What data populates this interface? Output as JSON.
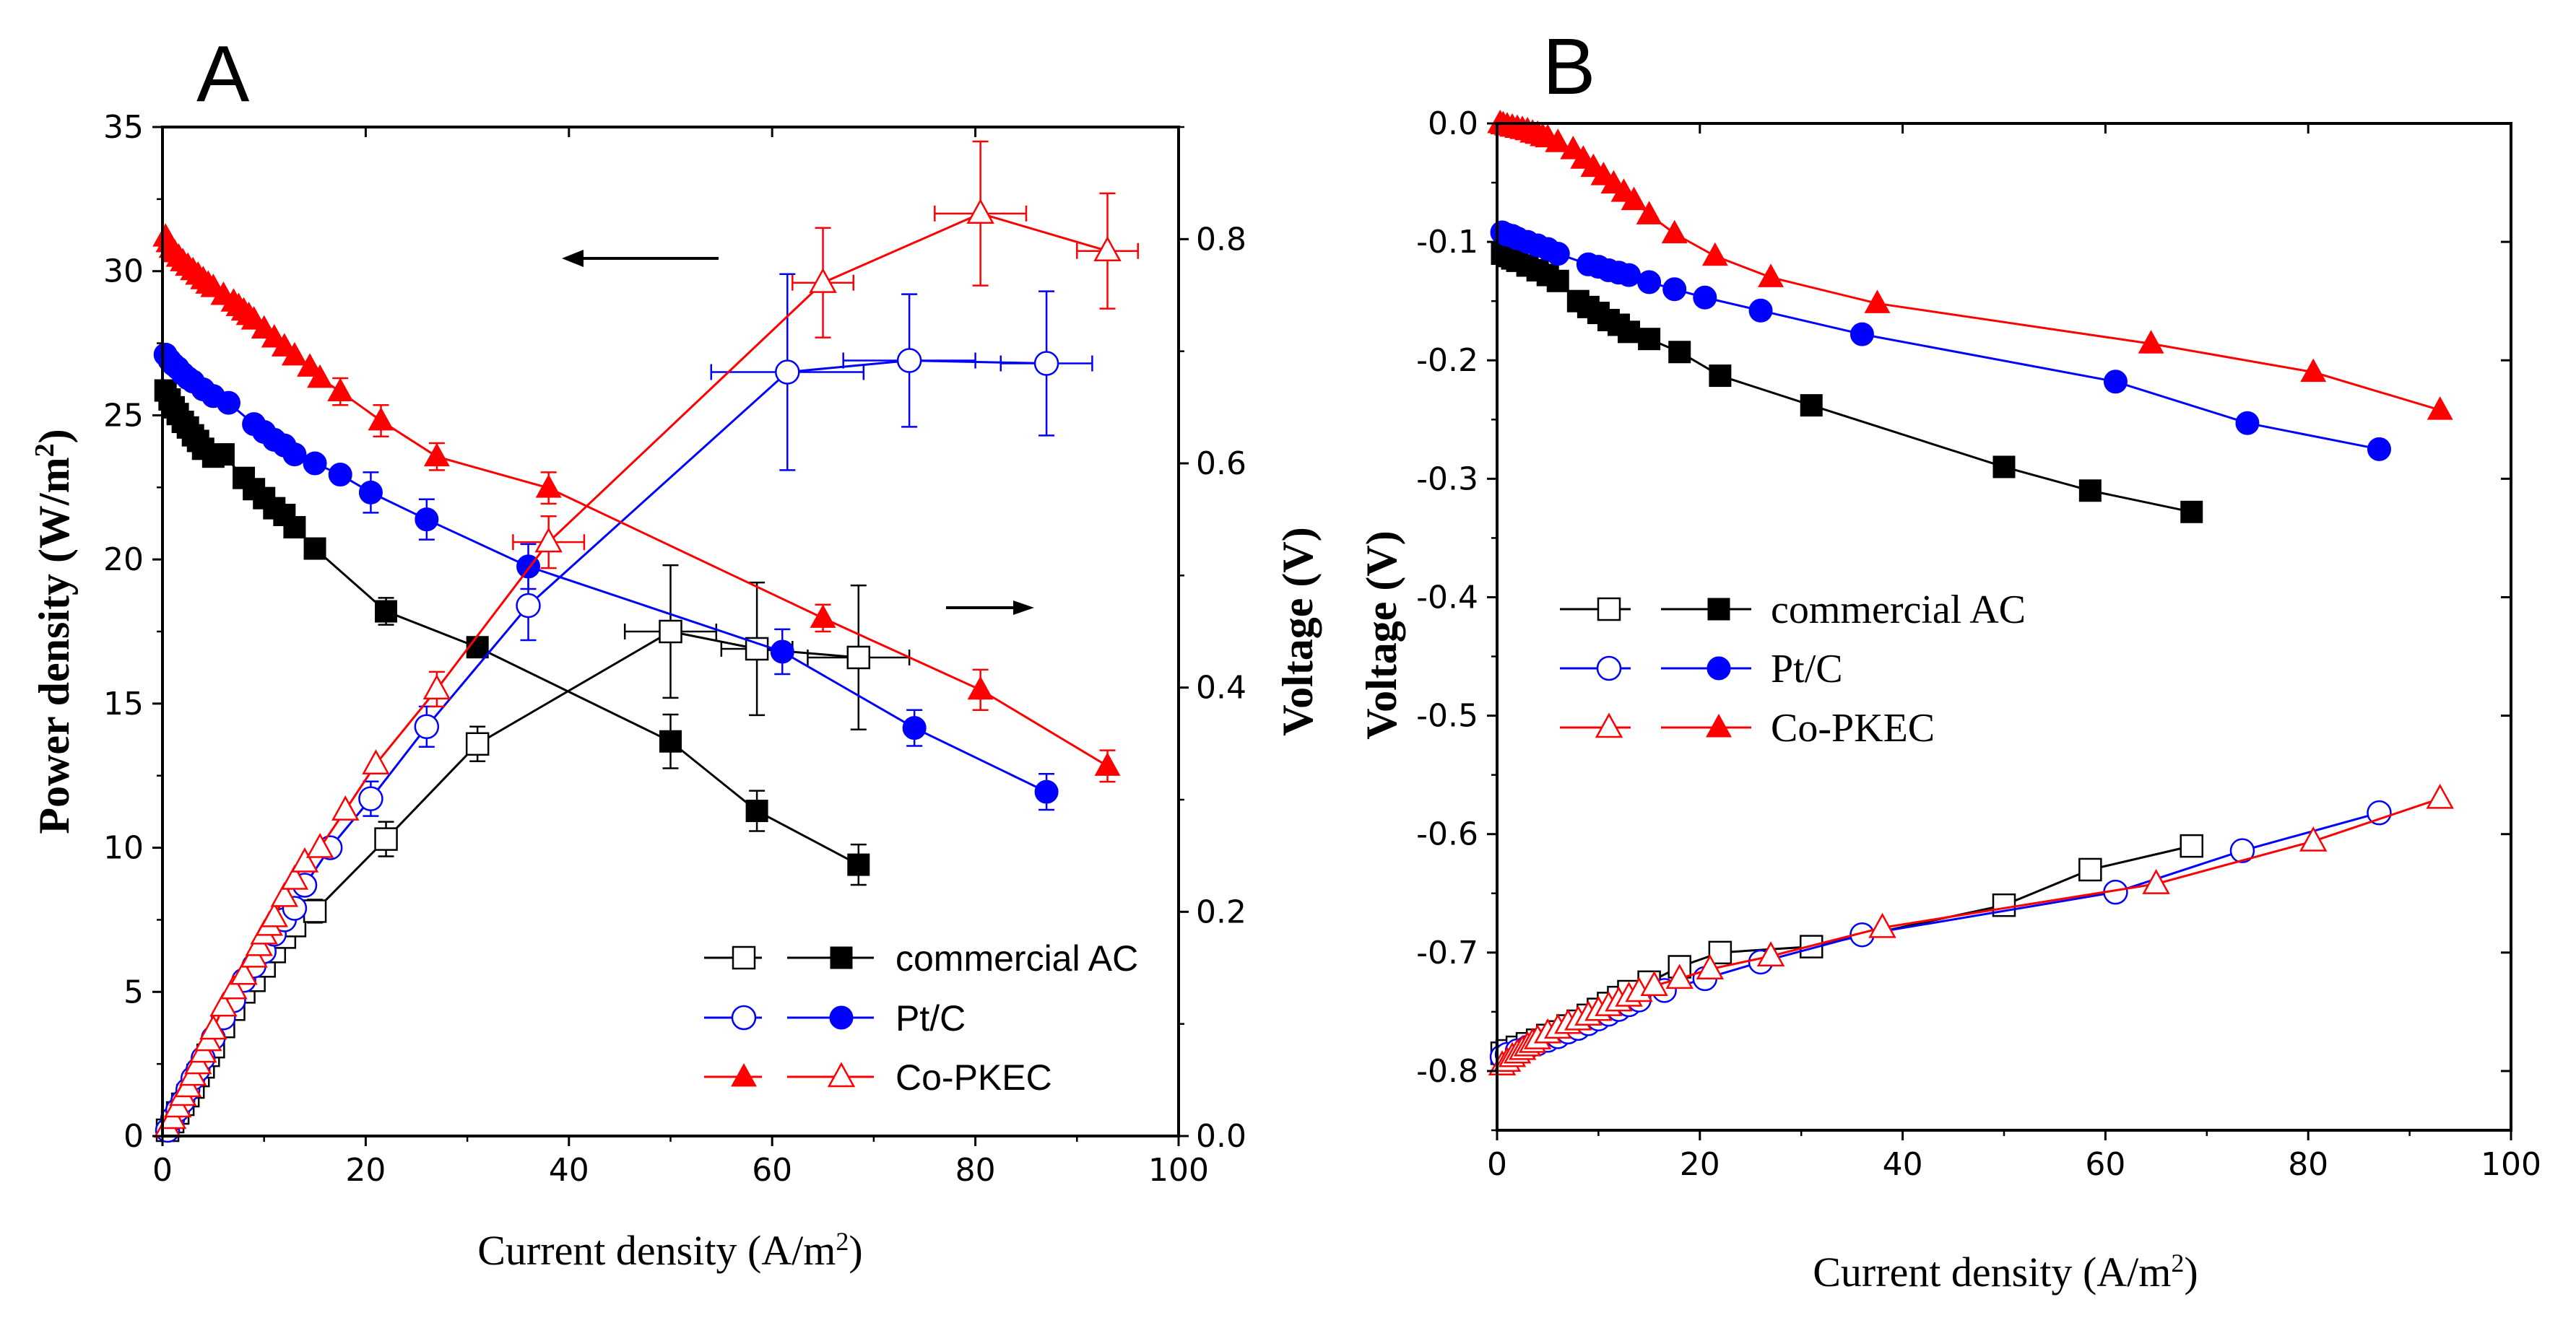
{
  "chart_data": [
    {
      "panel": "A",
      "type": "line",
      "title": "A",
      "xlabel": "Current density (A/m²)",
      "xlabel_parts": [
        "Current density (A/m",
        "2",
        ")"
      ],
      "ylabel_left": "Power density (W/m²)",
      "ylabel_left_parts": [
        "Power density (W/m",
        "2",
        ")"
      ],
      "ylabel_right": "Voltage (V)",
      "xlim": [
        0,
        100
      ],
      "ylim_left": [
        0,
        35
      ],
      "ylim_right": [
        0,
        0.9
      ],
      "xticks": [
        0,
        20,
        40,
        60,
        80,
        100
      ],
      "xtick_labels": [
        "0",
        "20",
        "40",
        "60",
        "80",
        "100"
      ],
      "yticks_left": [
        0,
        5,
        10,
        15,
        20,
        25,
        30,
        35
      ],
      "ytick_labels_left": [
        "0",
        "5",
        "10",
        "15",
        "20",
        "25",
        "30",
        "35"
      ],
      "yticks_right": [
        0,
        0.2,
        0.4,
        0.6,
        0.8
      ],
      "ytick_labels_right": [
        "0.0",
        "0.2",
        "0.4",
        "0.6",
        "0.8"
      ],
      "legend": [
        "commercial AC",
        "Pt/C",
        "Co-PKEC"
      ],
      "legend_position": "bottom-right",
      "annotations": [
        "arrow pointing left toward power density axis",
        "arrow pointing right toward voltage axis"
      ],
      "series": [
        {
          "name": "commercial AC",
          "kind": "power",
          "axis": "left",
          "marker": "open-square",
          "color": "#000000",
          "x": [
            0.5,
            1,
            1.5,
            2,
            2.5,
            3,
            3.5,
            4,
            4.5,
            5,
            6,
            7,
            8,
            9,
            10,
            11,
            12,
            13,
            15,
            22,
            31,
            50,
            58.5,
            68.5
          ],
          "y": [
            0.2,
            0.5,
            0.8,
            1.1,
            1.4,
            1.7,
            2.1,
            2.4,
            2.8,
            3.1,
            3.8,
            4.4,
            5.0,
            5.4,
            5.9,
            6.4,
            6.9,
            7.3,
            7.8,
            10.3,
            13.6,
            17.5,
            16.9,
            16.6
          ],
          "y_err": [
            0,
            0,
            0,
            0,
            0,
            0,
            0,
            0,
            0,
            0,
            0,
            0,
            0,
            0,
            0,
            0,
            0,
            0,
            0.4,
            0.6,
            0.6,
            2.3,
            2.3,
            2.5
          ],
          "x_err": [
            0,
            0,
            0,
            0,
            0,
            0,
            0,
            0,
            0,
            0,
            0,
            0,
            0,
            0,
            0,
            0,
            0,
            0,
            0,
            0,
            0,
            4.5,
            3.5,
            5
          ]
        },
        {
          "name": "commercial AC",
          "kind": "voltage",
          "axis": "right",
          "marker": "filled-square",
          "color": "#000000",
          "x": [
            0.3,
            0.7,
            1.1,
            1.5,
            2,
            2.5,
            3,
            3.5,
            4,
            5,
            6,
            8,
            9,
            10,
            11,
            12,
            13,
            15,
            22,
            31,
            50,
            58.5,
            68.5
          ],
          "y": [
            0.665,
            0.657,
            0.65,
            0.644,
            0.637,
            0.632,
            0.625,
            0.62,
            0.613,
            0.606,
            0.608,
            0.587,
            0.577,
            0.569,
            0.56,
            0.554,
            0.543,
            0.524,
            0.468,
            0.436,
            0.352,
            0.29,
            0.242
          ],
          "y_err": [
            0,
            0,
            0,
            0,
            0,
            0,
            0,
            0,
            0,
            0,
            0,
            0,
            0,
            0,
            0,
            0,
            0,
            0,
            0.012,
            0,
            0.024,
            0.018,
            0.018
          ]
        },
        {
          "name": "Pt/C",
          "kind": "power",
          "axis": "left",
          "marker": "open-circle",
          "color": "#0000ff",
          "x": [
            0.5,
            1,
            1.5,
            2,
            2.5,
            3,
            3.5,
            4,
            5,
            6,
            7,
            8,
            9,
            10,
            11,
            12,
            13,
            14,
            16.5,
            20.5,
            26,
            36,
            61.5,
            73.5,
            87
          ],
          "y": [
            0.2,
            0.6,
            0.9,
            1.2,
            1.6,
            2.0,
            2.3,
            2.7,
            3.4,
            4.1,
            4.7,
            5.4,
            5.9,
            6.4,
            7.0,
            7.5,
            7.9,
            8.7,
            10.0,
            11.7,
            14.2,
            18.4,
            26.5,
            26.9,
            26.8
          ],
          "y_err": [
            0,
            0,
            0,
            0,
            0,
            0,
            0,
            0,
            0,
            0,
            0,
            0,
            0,
            0,
            0,
            0,
            0,
            0,
            0,
            0.6,
            0.7,
            1.2,
            3.4,
            2.3,
            2.5
          ],
          "x_err": [
            0,
            0,
            0,
            0,
            0,
            0,
            0,
            0,
            0,
            0,
            0,
            0,
            0,
            0,
            0,
            0,
            0,
            0,
            0,
            0,
            0,
            0,
            7.5,
            6.5,
            4.5
          ]
        },
        {
          "name": "Pt/C",
          "kind": "voltage",
          "axis": "right",
          "marker": "filled-circle",
          "color": "#0000ff",
          "x": [
            0.3,
            0.7,
            1.1,
            1.5,
            2,
            2.5,
            3,
            4,
            5,
            6.5,
            9,
            10,
            11,
            12,
            13,
            15,
            17.5,
            20.5,
            26,
            36,
            61,
            74,
            87
          ],
          "y": [
            0.697,
            0.692,
            0.688,
            0.685,
            0.68,
            0.676,
            0.673,
            0.666,
            0.66,
            0.654,
            0.635,
            0.628,
            0.621,
            0.616,
            0.608,
            0.6,
            0.59,
            0.574,
            0.55,
            0.508,
            0.432,
            0.364,
            0.307
          ],
          "y_err": [
            0,
            0,
            0,
            0,
            0,
            0,
            0,
            0,
            0,
            0,
            0,
            0,
            0,
            0,
            0,
            0,
            0,
            0.018,
            0.018,
            0.02,
            0.02,
            0.016,
            0.016
          ]
        },
        {
          "name": "Co-PKEC",
          "kind": "power",
          "axis": "left",
          "marker": "open-triangle",
          "color": "#ff0000",
          "x": [
            0.5,
            1,
            1.5,
            2,
            2.5,
            3,
            3.5,
            4,
            4.5,
            5,
            6,
            7,
            8,
            9,
            9.5,
            10,
            10.5,
            11,
            12,
            13,
            14,
            15.5,
            18,
            21,
            27,
            38,
            65,
            80.5,
            93
          ],
          "y": [
            0.3,
            0.6,
            1.0,
            1.4,
            1.7,
            2.1,
            2.5,
            2.9,
            3.3,
            3.7,
            4.5,
            5.1,
            5.6,
            6.2,
            6.6,
            7.0,
            7.3,
            7.6,
            8.3,
            8.9,
            9.5,
            10.0,
            11.3,
            12.9,
            15.5,
            20.6,
            29.6,
            32.0,
            30.7
          ],
          "y_err": [
            0,
            0,
            0,
            0,
            0,
            0,
            0,
            0,
            0,
            0,
            0,
            0,
            0,
            0,
            0,
            0,
            0,
            0,
            0,
            0,
            0,
            0,
            0,
            0,
            0.6,
            0.9,
            1.9,
            2.5,
            2.0
          ],
          "x_err": [
            0,
            0,
            0,
            0,
            0,
            0,
            0,
            0,
            0,
            0,
            0,
            0,
            0,
            0,
            0,
            0,
            0,
            0,
            0,
            0,
            0,
            0,
            0,
            0,
            0,
            3.5,
            3,
            4.5,
            3
          ]
        },
        {
          "name": "Co-PKEC",
          "kind": "voltage",
          "axis": "right",
          "marker": "filled-triangle",
          "color": "#ff0000",
          "x": [
            0.3,
            0.6,
            0.9,
            1.2,
            1.6,
            2,
            2.5,
            3,
            3.5,
            4,
            4.5,
            5,
            6,
            7,
            7.5,
            8,
            8.5,
            9,
            10,
            11,
            12,
            13,
            14.5,
            15.5,
            17.5,
            21.5,
            27,
            38,
            65,
            80.5,
            93
          ],
          "y": [
            0.802,
            0.797,
            0.792,
            0.788,
            0.784,
            0.78,
            0.776,
            0.772,
            0.768,
            0.764,
            0.76,
            0.757,
            0.75,
            0.744,
            0.74,
            0.736,
            0.732,
            0.728,
            0.72,
            0.712,
            0.704,
            0.696,
            0.686,
            0.676,
            0.664,
            0.638,
            0.606,
            0.578,
            0.462,
            0.398,
            0.33
          ],
          "y_err": [
            0,
            0,
            0,
            0,
            0,
            0,
            0,
            0,
            0,
            0,
            0,
            0,
            0,
            0,
            0,
            0,
            0,
            0,
            0,
            0,
            0,
            0,
            0,
            0,
            0.012,
            0.014,
            0.012,
            0.014,
            0.012,
            0.018,
            0.014
          ]
        }
      ]
    },
    {
      "panel": "B",
      "type": "line",
      "title": "B",
      "xlabel": "Current density (A/m²)",
      "xlabel_parts": [
        "Current density (A/m",
        "2",
        ")"
      ],
      "ylabel": "Voltage (V)",
      "xlim": [
        0,
        100
      ],
      "ylim": [
        -0.85,
        0
      ],
      "xticks": [
        0,
        20,
        40,
        60,
        80,
        100
      ],
      "xtick_labels": [
        "0",
        "20",
        "40",
        "60",
        "80",
        "100"
      ],
      "yticks": [
        0,
        -0.1,
        -0.2,
        -0.3,
        -0.4,
        -0.5,
        -0.6,
        -0.7,
        -0.8
      ],
      "ytick_labels": [
        "0.0",
        "-0.1",
        "-0.2",
        "-0.3",
        "-0.4",
        "-0.5",
        "-0.6",
        "-0.7",
        "-0.8"
      ],
      "legend": [
        "commercial AC",
        "Pt/C",
        "Co-PKEC"
      ],
      "legend_position": "center-left",
      "series": [
        {
          "name": "commercial AC",
          "kind": "anode",
          "marker": "filled-square",
          "color": "#000000",
          "x": [
            0.5,
            1,
            1.5,
            2,
            3,
            4,
            5,
            6,
            8,
            9,
            10,
            11,
            12,
            13,
            15,
            18,
            22,
            31,
            50,
            58.5,
            68.5
          ],
          "y": [
            -0.11,
            -0.112,
            -0.114,
            -0.116,
            -0.12,
            -0.124,
            -0.128,
            -0.133,
            -0.15,
            -0.155,
            -0.16,
            -0.166,
            -0.17,
            -0.176,
            -0.182,
            -0.193,
            -0.213,
            -0.238,
            -0.29,
            -0.31,
            -0.328
          ]
        },
        {
          "name": "commercial AC",
          "kind": "cathode",
          "marker": "open-square",
          "color": "#000000",
          "x": [
            0.5,
            1,
            2,
            3,
            4,
            5,
            6,
            7,
            8,
            9,
            10,
            11,
            12,
            13,
            15,
            18,
            22,
            31,
            50,
            58.5,
            68.5
          ],
          "y": [
            -0.785,
            -0.783,
            -0.78,
            -0.777,
            -0.774,
            -0.77,
            -0.767,
            -0.762,
            -0.758,
            -0.753,
            -0.748,
            -0.743,
            -0.738,
            -0.733,
            -0.725,
            -0.712,
            -0.7,
            -0.695,
            -0.66,
            -0.63,
            -0.61
          ]
        },
        {
          "name": "Pt/C",
          "kind": "anode",
          "marker": "filled-circle",
          "color": "#0000ff",
          "x": [
            0.5,
            1,
            1.5,
            2,
            3,
            4,
            5,
            6,
            9,
            10,
            11,
            12,
            13,
            15,
            17.5,
            20.5,
            26,
            36,
            61,
            74,
            87
          ],
          "y": [
            -0.092,
            -0.094,
            -0.095,
            -0.097,
            -0.1,
            -0.103,
            -0.106,
            -0.11,
            -0.119,
            -0.121,
            -0.124,
            -0.126,
            -0.128,
            -0.134,
            -0.14,
            -0.147,
            -0.158,
            -0.178,
            -0.218,
            -0.253,
            -0.275
          ]
        },
        {
          "name": "Pt/C",
          "kind": "cathode",
          "marker": "open-circle",
          "color": "#0000ff",
          "x": [
            0.5,
            1,
            2,
            3,
            4,
            5,
            6,
            7,
            8,
            9,
            10,
            11,
            12,
            13,
            14,
            16.5,
            20.5,
            26,
            36,
            61,
            73.5,
            87
          ],
          "y": [
            -0.788,
            -0.786,
            -0.783,
            -0.78,
            -0.777,
            -0.774,
            -0.771,
            -0.767,
            -0.764,
            -0.76,
            -0.756,
            -0.752,
            -0.748,
            -0.744,
            -0.74,
            -0.732,
            -0.722,
            -0.708,
            -0.685,
            -0.649,
            -0.614,
            -0.582
          ]
        },
        {
          "name": "Co-PKEC",
          "kind": "anode",
          "marker": "filled-triangle",
          "color": "#ff0000",
          "x": [
            0.3,
            0.6,
            1,
            1.5,
            2,
            2.5,
            3,
            3.5,
            4,
            4.5,
            5,
            6,
            7.5,
            8.5,
            9.5,
            10.5,
            11.5,
            12.5,
            13.5,
            15,
            17.5,
            21.5,
            27,
            37.5,
            64.5,
            80.5,
            93
          ],
          "y": [
            0,
            -0.001,
            -0.002,
            -0.003,
            -0.004,
            -0.005,
            -0.006,
            -0.008,
            -0.009,
            -0.011,
            -0.012,
            -0.016,
            -0.022,
            -0.03,
            -0.037,
            -0.044,
            -0.051,
            -0.058,
            -0.065,
            -0.077,
            -0.093,
            -0.112,
            -0.13,
            -0.152,
            -0.186,
            -0.21,
            -0.242
          ]
        },
        {
          "name": "Co-PKEC",
          "kind": "cathode",
          "marker": "open-triangle",
          "color": "#ff0000",
          "x": [
            0.5,
            1,
            1.5,
            2,
            2.5,
            3,
            3.5,
            4,
            5,
            6,
            7,
            8,
            9,
            10,
            11,
            12,
            13,
            14,
            15.5,
            18,
            21,
            27,
            38,
            65,
            80.5,
            93
          ],
          "y": [
            -0.795,
            -0.792,
            -0.788,
            -0.785,
            -0.782,
            -0.779,
            -0.776,
            -0.773,
            -0.768,
            -0.764,
            -0.76,
            -0.757,
            -0.753,
            -0.749,
            -0.745,
            -0.741,
            -0.737,
            -0.733,
            -0.728,
            -0.722,
            -0.714,
            -0.703,
            -0.679,
            -0.642,
            -0.606,
            -0.57
          ]
        }
      ]
    }
  ]
}
